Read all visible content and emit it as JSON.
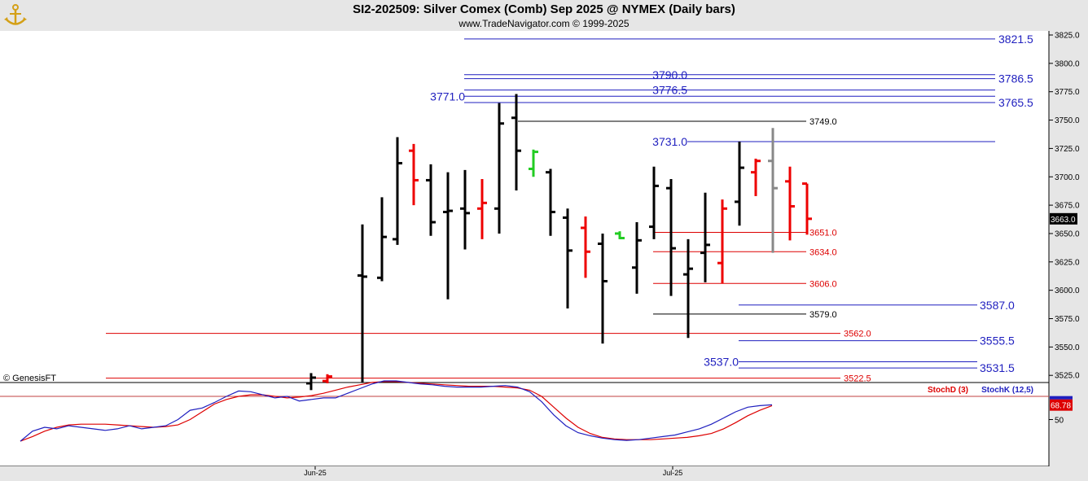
{
  "header": {
    "title": "SI2-202509:  Silver Comex (Comb) Sep 2025 @ NYMEX  (Daily bars)",
    "subtitle": "www.TradeNavigator.com © 1999-2025",
    "watermark": "© GenesisFT",
    "logo_icon": "anchor-logo-icon"
  },
  "chart_data": [
    {
      "type": "ohlc",
      "ylim": [
        3512,
        3835
      ],
      "yticks": [
        "3825.0",
        "3800.0",
        "3775.0",
        "3750.0",
        "3725.0",
        "3700.0",
        "3675.0",
        "3650.0",
        "3625.0",
        "3600.0",
        "3575.0",
        "3550.0",
        "3525.0"
      ],
      "last_price": "3663.0",
      "xlabels": [
        "Jun-25",
        "Jul-25"
      ],
      "bars": [
        {
          "h": 3527,
          "l": 3512,
          "o": 3518,
          "c": 3523,
          "color": "black"
        },
        {
          "h": 3526,
          "l": 3518,
          "o": 3520,
          "c": 3524,
          "color": "red"
        },
        {
          "h": 3658,
          "l": 3519,
          "o": 3613,
          "c": 3612,
          "color": "black"
        },
        {
          "h": 3682,
          "l": 3608,
          "o": 3611,
          "c": 3647,
          "color": "black"
        },
        {
          "h": 3735,
          "l": 3640,
          "o": 3645,
          "c": 3712,
          "color": "black"
        },
        {
          "h": 3729,
          "l": 3675,
          "o": 3723,
          "c": 3697,
          "color": "red"
        },
        {
          "h": 3711,
          "l": 3648,
          "o": 3697,
          "c": 3660,
          "color": "black"
        },
        {
          "h": 3704,
          "l": 3592,
          "o": 3669,
          "c": 3670,
          "color": "black"
        },
        {
          "h": 3706,
          "l": 3636,
          "o": 3672,
          "c": 3668,
          "color": "black"
        },
        {
          "h": 3698,
          "l": 3645,
          "o": 3672,
          "c": 3677,
          "color": "red"
        },
        {
          "h": 3765,
          "l": 3650,
          "o": 3672,
          "c": 3747,
          "color": "black"
        },
        {
          "h": 3773,
          "l": 3688,
          "o": 3752,
          "c": 3723,
          "color": "black"
        },
        {
          "h": 3724,
          "l": 3700,
          "o": 3707,
          "c": 3722,
          "color": "green"
        },
        {
          "h": 3707,
          "l": 3648,
          "o": 3704,
          "c": 3669,
          "color": "black"
        },
        {
          "h": 3672,
          "l": 3584,
          "o": 3664,
          "c": 3635,
          "color": "black"
        },
        {
          "h": 3665,
          "l": 3611,
          "o": 3655,
          "c": 3634,
          "color": "red"
        },
        {
          "h": 3650,
          "l": 3553,
          "o": 3641,
          "c": 3608,
          "color": "black"
        },
        {
          "h": 3652,
          "l": 3645,
          "o": 3650,
          "c": 3646,
          "color": "green"
        },
        {
          "h": 3660,
          "l": 3597,
          "o": 3620,
          "c": 3644,
          "color": "black"
        },
        {
          "h": 3709,
          "l": 3645,
          "o": 3656,
          "c": 3692,
          "color": "black"
        },
        {
          "h": 3698,
          "l": 3595,
          "o": 3690,
          "c": 3637,
          "color": "black"
        },
        {
          "h": 3645,
          "l": 3558,
          "o": 3614,
          "c": 3619,
          "color": "black"
        },
        {
          "h": 3686,
          "l": 3607,
          "o": 3633,
          "c": 3640,
          "color": "black"
        },
        {
          "h": 3680,
          "l": 3606,
          "o": 3624,
          "c": 3672,
          "color": "red"
        },
        {
          "h": 3731,
          "l": 3657,
          "o": 3678,
          "c": 3708,
          "color": "black"
        },
        {
          "h": 3716,
          "l": 3683,
          "o": 3704,
          "c": 3714,
          "color": "red"
        },
        {
          "h": 3743,
          "l": 3633,
          "o": 3714,
          "c": 3690,
          "color": "gray"
        },
        {
          "h": 3709,
          "l": 3644,
          "o": 3696,
          "c": 3674,
          "color": "red"
        },
        {
          "h": 3694,
          "l": 3649,
          "o": 3694,
          "c": 3663,
          "color": "red"
        }
      ],
      "levels": [
        {
          "value": "3821.5",
          "color": "#1f1fbf",
          "kind": "resistance"
        },
        {
          "value": "3790.0",
          "color": "#1f1fbf",
          "kind": "resistance"
        },
        {
          "value": "3786.5",
          "color": "#1f1fbf",
          "kind": "resistance"
        },
        {
          "value": "3776.5",
          "color": "#1f1fbf",
          "kind": "resistance"
        },
        {
          "value": "3771.0",
          "color": "#1f1fbf",
          "kind": "resistance"
        },
        {
          "value": "3765.5",
          "color": "#1f1fbf",
          "kind": "resistance"
        },
        {
          "value": "3749.0",
          "color": "#000000",
          "kind": "pivot"
        },
        {
          "value": "3731.0",
          "color": "#1f1fbf",
          "kind": "resistance"
        },
        {
          "value": "3651.0",
          "color": "#dd0000",
          "kind": "support"
        },
        {
          "value": "3634.0",
          "color": "#dd0000",
          "kind": "support"
        },
        {
          "value": "3606.0",
          "color": "#dd0000",
          "kind": "support"
        },
        {
          "value": "3587.0",
          "color": "#1f1fbf",
          "kind": "support"
        },
        {
          "value": "3579.0",
          "color": "#000000",
          "kind": "pivot"
        },
        {
          "value": "3562.0",
          "color": "#dd0000",
          "kind": "support"
        },
        {
          "value": "3555.5",
          "color": "#1f1fbf",
          "kind": "support"
        },
        {
          "value": "3537.0",
          "color": "#1f1fbf",
          "kind": "support"
        },
        {
          "value": "3531.5",
          "color": "#1f1fbf",
          "kind": "support"
        },
        {
          "value": "3522.5",
          "color": "#dd0000",
          "kind": "support"
        }
      ]
    },
    {
      "type": "line",
      "ylim": [
        0,
        100
      ],
      "reference_line": 80,
      "ytick": "50",
      "last_value": "68.78",
      "series": [
        {
          "name": "StochD (3)",
          "color": "#dd0000",
          "values": [
            22,
            28,
            35,
            40,
            43,
            44,
            44,
            44,
            43,
            42,
            41,
            40,
            41,
            43,
            50,
            60,
            70,
            76,
            80,
            82,
            82,
            80,
            78,
            79,
            81,
            84,
            88,
            92,
            95,
            98,
            99,
            99,
            98,
            97,
            96,
            95,
            94,
            93,
            93,
            93,
            92,
            91,
            88,
            80,
            66,
            52,
            40,
            32,
            27,
            25,
            24,
            24,
            24,
            25,
            26,
            27,
            29,
            32,
            38,
            46,
            55,
            62,
            68
          ]
        },
        {
          "name": "StochK (12,5)",
          "color": "#1f1fbf",
          "values": [
            22,
            35,
            40,
            38,
            42,
            40,
            38,
            36,
            38,
            42,
            38,
            40,
            42,
            50,
            62,
            65,
            72,
            80,
            87,
            86,
            82,
            78,
            80,
            74,
            76,
            78,
            78,
            84,
            90,
            96,
            100,
            100,
            98,
            96,
            95,
            93,
            92,
            92,
            92,
            93,
            94,
            92,
            86,
            73,
            56,
            42,
            33,
            29,
            26,
            24,
            23,
            24,
            26,
            28,
            30,
            34,
            38,
            44,
            52,
            60,
            66,
            68,
            69
          ]
        }
      ]
    }
  ]
}
